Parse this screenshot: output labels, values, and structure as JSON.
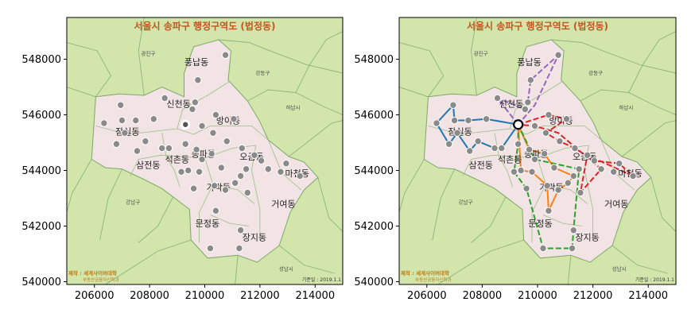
{
  "chart_data": [
    {
      "type": "scatter",
      "title": "서울시 송파구 행정구역도 (법정동)",
      "x_ticks": [
        206000,
        208000,
        210000,
        212000,
        214000
      ],
      "y_ticks": [
        540000,
        542000,
        544000,
        546000,
        548000
      ],
      "xlim": [
        205000,
        215000
      ],
      "ylim": [
        539900,
        549500
      ],
      "dong_labels": [
        {
          "name": "풍납동",
          "x": 209700,
          "y": 547900
        },
        {
          "name": "신천동",
          "x": 209050,
          "y": 546400
        },
        {
          "name": "잠실동",
          "x": 207200,
          "y": 545400
        },
        {
          "name": "방이동",
          "x": 210850,
          "y": 545800
        },
        {
          "name": "송파동",
          "x": 209950,
          "y": 544600
        },
        {
          "name": "삼전동",
          "x": 207950,
          "y": 544200
        },
        {
          "name": "석촌동",
          "x": 209000,
          "y": 544400
        },
        {
          "name": "오금동",
          "x": 211700,
          "y": 544500
        },
        {
          "name": "마천동",
          "x": 213350,
          "y": 543900
        },
        {
          "name": "가락동",
          "x": 210500,
          "y": 543400
        },
        {
          "name": "거여동",
          "x": 212850,
          "y": 542800
        },
        {
          "name": "문정동",
          "x": 210100,
          "y": 542100
        },
        {
          "name": "장지동",
          "x": 211800,
          "y": 541600
        }
      ],
      "neighbor_labels": [
        {
          "name": "광진구",
          "x": 207950,
          "y": 548150
        },
        {
          "name": "강동구",
          "x": 212100,
          "y": 547450
        },
        {
          "name": "하남시",
          "x": 213200,
          "y": 546200
        },
        {
          "name": "강남구",
          "x": 207400,
          "y": 542800
        },
        {
          "name": "성남시",
          "x": 212950,
          "y": 540400
        }
      ],
      "credit_line1": "제작 : 세계사이버대학",
      "credit_line2": "부동산금융자산학과",
      "base_date": "기준일 : 2019.1.1",
      "points": [
        [
          210750,
          548150
        ],
        [
          209750,
          547250
        ],
        [
          206950,
          546350
        ],
        [
          208550,
          546600
        ],
        [
          209650,
          546450
        ],
        [
          210400,
          546000
        ],
        [
          211050,
          545850
        ],
        [
          209250,
          545600
        ],
        [
          209900,
          545600
        ],
        [
          206350,
          545700
        ],
        [
          207000,
          545800
        ],
        [
          207500,
          545800
        ],
        [
          208150,
          545850
        ],
        [
          209550,
          546200
        ],
        [
          206800,
          544950
        ],
        [
          207100,
          545350
        ],
        [
          207850,
          545050
        ],
        [
          207550,
          544700
        ],
        [
          208450,
          544800
        ],
        [
          208700,
          544800
        ],
        [
          209300,
          544950
        ],
        [
          209700,
          544750
        ],
        [
          210300,
          545350
        ],
        [
          210800,
          545050
        ],
        [
          210250,
          544600
        ],
        [
          211350,
          544800
        ],
        [
          211800,
          544550
        ],
        [
          212050,
          544350
        ],
        [
          209900,
          544400
        ],
        [
          209150,
          543950
        ],
        [
          209400,
          544000
        ],
        [
          209800,
          543950
        ],
        [
          210600,
          544100
        ],
        [
          211500,
          544050
        ],
        [
          211300,
          543800
        ],
        [
          212300,
          544050
        ],
        [
          212950,
          544250
        ],
        [
          212750,
          543950
        ],
        [
          213450,
          543800
        ],
        [
          209600,
          543350
        ],
        [
          210350,
          543450
        ],
        [
          210750,
          543300
        ],
        [
          211100,
          543550
        ],
        [
          211550,
          543200
        ],
        [
          210400,
          542550
        ],
        [
          211300,
          541850
        ],
        [
          210200,
          541200
        ],
        [
          211250,
          541200
        ]
      ],
      "center_point": [
        209300,
        545650
      ]
    },
    {
      "type": "scatter",
      "title": "서울시 송파구 행정구역도 (법정동)",
      "x_ticks": [
        206000,
        208000,
        210000,
        212000,
        214000
      ],
      "y_ticks": [
        540000,
        542000,
        544000,
        546000,
        548000
      ],
      "xlim": [
        205000,
        215000
      ],
      "ylim": [
        539900,
        549500
      ],
      "same_layers_as_panel": 0,
      "routes": [
        {
          "color": "#9467bd",
          "path": [
            [
              209300,
              545650
            ],
            [
              208550,
              546600
            ],
            [
              209550,
              546200
            ],
            [
              209650,
              546450
            ],
            [
              209750,
              547250
            ],
            [
              210750,
              548150
            ],
            [
              209900,
              546350
            ],
            [
              209300,
              545650
            ]
          ]
        },
        {
          "color": "#1f77b4",
          "path": [
            [
              209300,
              545650
            ],
            [
              208150,
              545850
            ],
            [
              207500,
              545800
            ],
            [
              207000,
              545800
            ],
            [
              206950,
              546350
            ],
            [
              206350,
              545700
            ],
            [
              206800,
              544950
            ],
            [
              207100,
              545350
            ],
            [
              207550,
              544700
            ],
            [
              207850,
              545050
            ],
            [
              208450,
              544800
            ],
            [
              208700,
              544800
            ],
            [
              209300,
              545650
            ]
          ]
        },
        {
          "color": "#d62728",
          "path": [
            [
              209300,
              545650
            ],
            [
              210400,
              546000
            ],
            [
              211050,
              545850
            ],
            [
              210300,
              545350
            ],
            [
              210800,
              545050
            ],
            [
              211350,
              544800
            ],
            [
              212050,
              544350
            ],
            [
              212950,
              544250
            ],
            [
              213450,
              543800
            ],
            [
              211800,
              544550
            ],
            [
              211550,
              543200
            ],
            [
              212300,
              544050
            ],
            [
              210750,
              545350
            ],
            [
              209900,
              545600
            ],
            [
              209300,
              545650
            ]
          ]
        },
        {
          "color": "#ff7f0e",
          "path": [
            [
              209300,
              545650
            ],
            [
              209700,
              544750
            ],
            [
              210250,
              544600
            ],
            [
              210600,
              544100
            ],
            [
              211300,
              543800
            ],
            [
              211100,
              543550
            ],
            [
              210750,
              543300
            ],
            [
              210400,
              542550
            ],
            [
              210350,
              543450
            ],
            [
              209800,
              543950
            ],
            [
              209400,
              544000
            ],
            [
              209300,
              545650
            ]
          ]
        },
        {
          "color": "#2ca02c",
          "path": [
            [
              209300,
              545650
            ],
            [
              209300,
              544950
            ],
            [
              209150,
              543950
            ],
            [
              209600,
              543350
            ],
            [
              210200,
              541200
            ],
            [
              211250,
              541200
            ],
            [
              211300,
              541850
            ],
            [
              211500,
              544050
            ],
            [
              209900,
              544400
            ],
            [
              209300,
              545650
            ]
          ]
        }
      ]
    }
  ]
}
